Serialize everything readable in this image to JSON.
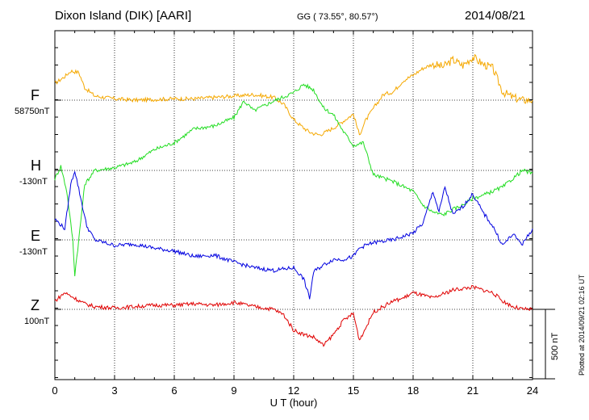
{
  "header": {
    "station": "Dixon Island (DIK)  [AARI]",
    "coordinates": "GG ( 73.55°,  80.57°)",
    "date": "2014/08/21"
  },
  "footer": {
    "plotted_at": "Plotted at 2014/09/21 02:16 UT"
  },
  "colors": {
    "F": "#f5a800",
    "H": "#22dd22",
    "E": "#0000e0",
    "Z": "#e00000",
    "grid": "#000000"
  },
  "chart_data": {
    "type": "line",
    "title": "Dixon Island (DIK)  [AARI]",
    "xlabel": "U T (hour)",
    "xlim": [
      0,
      24
    ],
    "x_ticks": [
      "0",
      "3",
      "6",
      "9",
      "12",
      "15",
      "18",
      "21",
      "24"
    ],
    "scale_bar_label": "500 nT",
    "channel_span_nT": 500,
    "series": [
      {
        "name": "F",
        "baseline_label": "58750nT",
        "offset_nT": 0,
        "x": [
          0,
          0.5,
          0.8,
          1.2,
          1.5,
          2,
          3,
          4,
          5,
          6,
          7,
          8,
          9,
          10,
          11,
          11.5,
          12,
          12.5,
          12.8,
          13,
          13.3,
          13.6,
          14,
          14.5,
          15,
          15.3,
          15.6,
          16,
          16.5,
          17,
          17.5,
          18,
          18.5,
          19,
          19.5,
          20,
          20.5,
          21,
          21.5,
          22,
          22.5,
          23,
          23.5,
          24
        ],
        "y": [
          120,
          170,
          210,
          200,
          90,
          30,
          10,
          0,
          5,
          10,
          10,
          20,
          30,
          40,
          20,
          -30,
          -140,
          -200,
          -230,
          -240,
          -250,
          -230,
          -200,
          -150,
          -100,
          -250,
          -150,
          -60,
          40,
          60,
          140,
          180,
          230,
          260,
          240,
          290,
          250,
          310,
          260,
          230,
          60,
          20,
          0,
          0
        ]
      },
      {
        "name": "H",
        "baseline_label": "-130nT",
        "offset_nT": 0,
        "x": [
          0,
          0.3,
          0.6,
          0.9,
          1.0,
          1.2,
          1.5,
          2,
          3,
          4,
          5,
          6,
          7,
          8,
          9,
          9.5,
          10,
          11,
          12,
          12.5,
          13,
          13.5,
          14,
          14.5,
          15,
          15.5,
          16,
          17,
          18,
          18.5,
          19,
          19.5,
          20,
          20.5,
          21,
          21.5,
          22,
          22.5,
          23,
          23.5,
          24
        ],
        "y": [
          -60,
          30,
          -150,
          -500,
          -750,
          -500,
          -100,
          0,
          20,
          60,
          150,
          200,
          300,
          320,
          380,
          500,
          430,
          500,
          560,
          620,
          580,
          450,
          400,
          280,
          180,
          200,
          -30,
          -80,
          -150,
          -250,
          -300,
          -320,
          -280,
          -250,
          -200,
          -180,
          -150,
          -120,
          -60,
          0,
          -20
        ]
      },
      {
        "name": "E",
        "baseline_label": "-130nT",
        "offset_nT": 0,
        "x": [
          0,
          0.5,
          0.8,
          1.0,
          1.3,
          1.6,
          2,
          3,
          4,
          5,
          6,
          7,
          8,
          9,
          10,
          11,
          12,
          12.5,
          12.8,
          13,
          13.5,
          14,
          14.5,
          15,
          15.3,
          15.6,
          16,
          17,
          18,
          18.5,
          19,
          19.3,
          19.6,
          20,
          20.5,
          21,
          21.5,
          22,
          22.5,
          23,
          23.5,
          24
        ],
        "y": [
          150,
          80,
          400,
          500,
          300,
          100,
          0,
          -40,
          -30,
          -60,
          -80,
          -120,
          -110,
          -160,
          -200,
          -220,
          -200,
          -280,
          -420,
          -230,
          -180,
          -140,
          -140,
          -120,
          -60,
          -40,
          -20,
          0,
          50,
          120,
          350,
          200,
          380,
          180,
          240,
          330,
          200,
          100,
          -40,
          40,
          -30,
          80
        ]
      },
      {
        "name": "Z",
        "baseline_label": "100nT",
        "offset_nT": 0,
        "x": [
          0,
          0.5,
          1.0,
          1.5,
          2,
          3,
          4,
          5,
          6,
          7,
          8,
          9,
          10,
          11,
          11.5,
          12,
          12.5,
          13,
          13.5,
          14,
          14.5,
          15,
          15.3,
          15.6,
          16,
          16.5,
          17,
          17.5,
          18,
          19,
          20,
          21,
          21.5,
          22,
          22.5,
          23,
          23.5,
          24
        ],
        "y": [
          60,
          120,
          80,
          40,
          20,
          10,
          20,
          30,
          30,
          40,
          30,
          50,
          20,
          0,
          -40,
          -150,
          -180,
          -200,
          -260,
          -180,
          -80,
          -30,
          -220,
          -140,
          -20,
          20,
          60,
          80,
          120,
          80,
          140,
          160,
          140,
          120,
          60,
          20,
          0,
          0
        ]
      }
    ]
  }
}
